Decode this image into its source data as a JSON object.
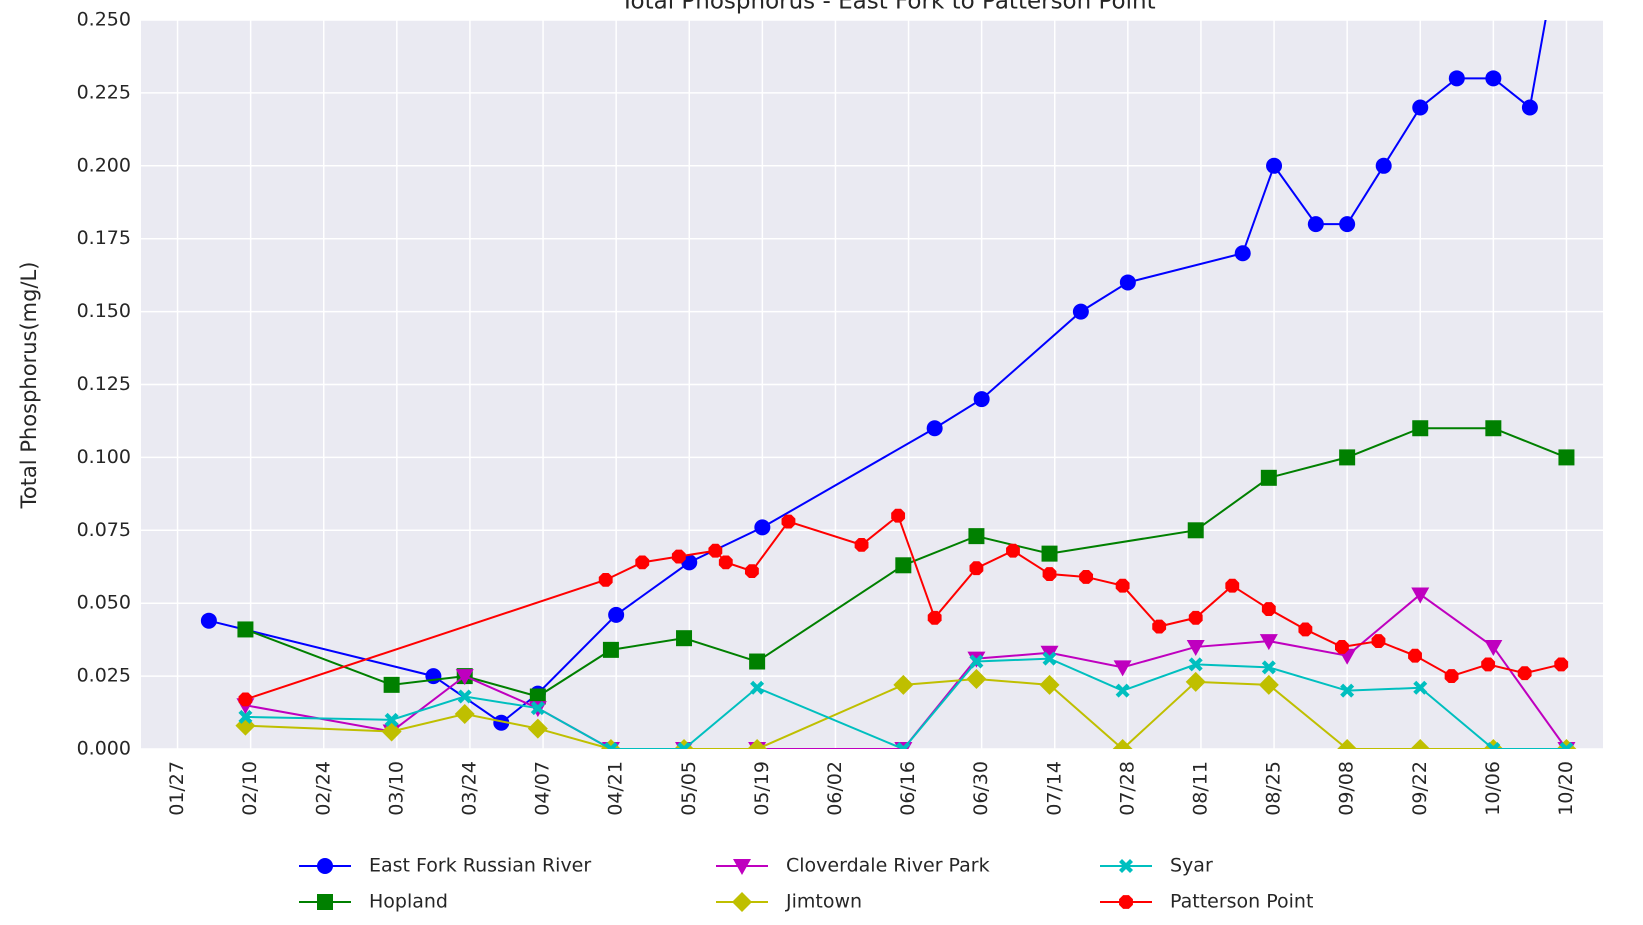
{
  "chart_data": {
    "type": "line",
    "title": "Total Phosphorus - East Fork to Patterson Point",
    "y_label": "Total Phosphorus(mg/L)",
    "xlim": [
      "01/20",
      "10/27"
    ],
    "xticks": [
      "01/27",
      "02/10",
      "02/24",
      "03/10",
      "03/24",
      "04/07",
      "04/21",
      "05/05",
      "05/19",
      "06/02",
      "06/16",
      "06/30",
      "07/14",
      "07/28",
      "08/11",
      "08/25",
      "09/08",
      "09/22",
      "10/06",
      "10/20"
    ],
    "ylim": [
      0,
      0.25
    ],
    "yticks": [
      {
        "value": 0,
        "label": "0.000"
      },
      {
        "value": 0.025,
        "label": "0.025"
      },
      {
        "value": 0.05,
        "label": "0.050"
      },
      {
        "value": 0.075,
        "label": "0.075"
      },
      {
        "value": 0.1,
        "label": "0.100"
      },
      {
        "value": 0.125,
        "label": "0.125"
      },
      {
        "value": 0.15,
        "label": "0.150"
      },
      {
        "value": 0.175,
        "label": "0.175"
      },
      {
        "value": 0.2,
        "label": "0.200"
      },
      {
        "value": 0.225,
        "label": "0.225"
      },
      {
        "value": 0.25,
        "label": "0.250"
      }
    ],
    "grid": true,
    "legend": "bottom",
    "series": [
      {
        "name": "East Fork Russian River",
        "color": "#0000ff",
        "marker": "circle",
        "x": [
          "02/02",
          "03/17",
          "03/30",
          "04/06",
          "04/21",
          "05/05",
          "05/19",
          "06/21",
          "06/30",
          "07/19",
          "07/28",
          "08/19",
          "08/25",
          "09/02",
          "09/08",
          "09/15",
          "09/22",
          "09/29",
          "10/06",
          "10/13",
          "10/17"
        ],
        "values": [
          0.044,
          0.025,
          0.009,
          0.019,
          0.046,
          0.064,
          0.076,
          0.11,
          0.12,
          0.15,
          0.16,
          0.17,
          0.2,
          0.18,
          0.18,
          0.2,
          0.22,
          0.23,
          0.23,
          0.22,
          0.26
        ]
      },
      {
        "name": "Hopland",
        "color": "#008000",
        "marker": "square",
        "x": [
          "02/09",
          "03/09",
          "03/23",
          "04/06",
          "04/20",
          "05/04",
          "05/18",
          "06/15",
          "06/29",
          "07/13",
          "08/10",
          "08/24",
          "09/08",
          "09/22",
          "10/06",
          "10/20"
        ],
        "values": [
          0.041,
          0.022,
          0.025,
          0.018,
          0.034,
          0.038,
          0.03,
          0.063,
          0.073,
          0.067,
          0.075,
          0.093,
          0.1,
          0.11,
          0.11,
          0.1
        ]
      },
      {
        "name": "Cloverdale River Park",
        "color": "#bf00bf",
        "marker": "triangle-down",
        "x": [
          "02/09",
          "03/09",
          "03/23",
          "04/06",
          "04/20",
          "05/04",
          "05/18",
          "06/15",
          "06/29",
          "07/13",
          "07/27",
          "08/10",
          "08/24",
          "09/08",
          "09/22",
          "10/06",
          "10/20"
        ],
        "values": [
          0.015,
          0.006,
          0.025,
          0.014,
          0,
          0,
          0,
          0,
          0.031,
          0.033,
          0.028,
          0.035,
          0.037,
          0.032,
          0.053,
          0.035,
          0
        ]
      },
      {
        "name": "Jimtown",
        "color": "#bfbf00",
        "marker": "diamond",
        "x": [
          "02/09",
          "03/09",
          "03/23",
          "04/06",
          "04/20",
          "05/04",
          "05/18",
          "06/15",
          "06/29",
          "07/13",
          "07/27",
          "08/10",
          "08/24",
          "09/08",
          "09/22",
          "10/06",
          "10/20"
        ],
        "values": [
          0.008,
          0.006,
          0.012,
          0.007,
          0,
          0,
          0,
          0.022,
          0.024,
          0.022,
          0,
          0.023,
          0.022,
          0,
          0,
          0,
          0
        ]
      },
      {
        "name": "Syar",
        "color": "#00bfbf",
        "marker": "x",
        "x": [
          "02/09",
          "03/09",
          "03/23",
          "04/06",
          "04/20",
          "05/04",
          "05/18",
          "06/15",
          "06/29",
          "07/13",
          "07/27",
          "08/10",
          "08/24",
          "09/08",
          "09/22",
          "10/06",
          "10/20"
        ],
        "values": [
          0.011,
          0.01,
          0.018,
          0.014,
          0,
          0,
          0.021,
          0,
          0.03,
          0.031,
          0.02,
          0.029,
          0.028,
          0.02,
          0.021,
          0,
          0
        ]
      },
      {
        "name": "Patterson Point",
        "color": "#ff0000",
        "marker": "octagon",
        "x": [
          "02/09",
          "04/19",
          "04/26",
          "05/03",
          "05/10",
          "05/12",
          "05/17",
          "05/24",
          "06/07",
          "06/14",
          "06/21",
          "06/29",
          "07/06",
          "07/13",
          "07/20",
          "07/27",
          "08/03",
          "08/10",
          "08/17",
          "08/24",
          "08/31",
          "09/07",
          "09/14",
          "09/21",
          "09/28",
          "10/05",
          "10/12",
          "10/19"
        ],
        "values": [
          0.017,
          0.058,
          0.064,
          0.066,
          0.068,
          0.064,
          0.061,
          0.078,
          0.07,
          0.08,
          0.045,
          0.062,
          0.068,
          0.06,
          0.059,
          0.056,
          0.042,
          0.045,
          0.056,
          0.048,
          0.041,
          0.035,
          0.037,
          0.032,
          0.025,
          0.029,
          0.026,
          0.029
        ]
      }
    ]
  }
}
